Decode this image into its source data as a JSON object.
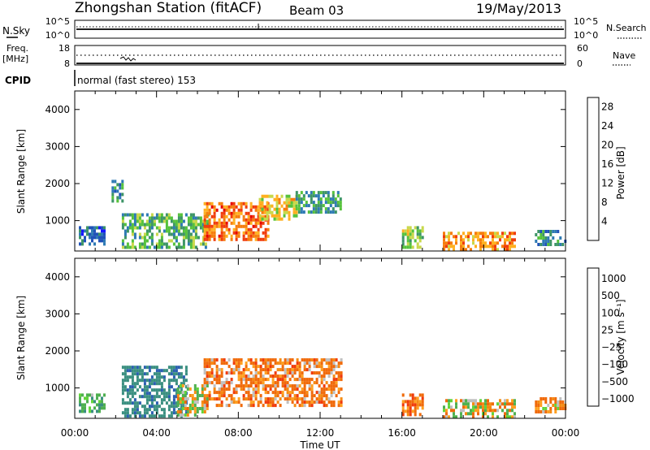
{
  "header": {
    "station": "Zhongshan Station (fitACF)",
    "beam": "Beam 03",
    "date": "19/May/2013"
  },
  "top_panels": {
    "nsky": {
      "label": "N.Sky",
      "left_ticks": [
        "10^5",
        "10^0"
      ],
      "right_ticks": [
        "10^5",
        "10^0"
      ],
      "right_label": "N.Search"
    },
    "freq": {
      "label_line1": "Freq.",
      "label_line2": "[MHz]",
      "left_ticks": [
        "18",
        "8"
      ],
      "right_ticks": [
        "60",
        "0"
      ],
      "right_label": "Nave"
    },
    "cpid": {
      "label": "CPID",
      "text": "normal (fast stereo) 153"
    }
  },
  "axes": {
    "ylabel": "Slant Range [km]",
    "yticks": [
      "1000",
      "2000",
      "3000",
      "4000"
    ],
    "xticks": [
      "00:00",
      "04:00",
      "08:00",
      "12:00",
      "16:00",
      "20:00",
      "00:00"
    ],
    "xlabel": "Time UT"
  },
  "colorbars": {
    "power": {
      "label": "Power [dB]",
      "ticks": [
        "4",
        "8",
        "12",
        "16",
        "20",
        "24",
        "28"
      ],
      "colors": [
        "#1515ff",
        "#2052b8",
        "#2e7ab4",
        "#3d9566",
        "#56c23c",
        "#c8d84a",
        "#ffb020",
        "#f67d0c",
        "#f03c0c",
        "#e60000"
      ]
    },
    "velocity": {
      "label": "Velocity [m s⁻¹]",
      "ticks": [
        "1000",
        "500",
        "100",
        "25",
        "−25",
        "−100",
        "−500",
        "−1000"
      ],
      "colors": [
        "#1c28c8",
        "#2a5fb0",
        "#3a8f80",
        "#4fb050",
        "#62d43a",
        "#bfbfbf",
        "#ffa020",
        "#f58a12",
        "#f06a0a",
        "#f03a0a",
        "#e60000"
      ]
    }
  },
  "chart_data": [
    {
      "type": "heatmap",
      "panel": "power",
      "x_range_hours": [
        0,
        24
      ],
      "y_range_km": [
        180,
        4500
      ],
      "value_unit": "dB",
      "regions": [
        {
          "t": [
            0.2,
            1.5
          ],
          "r": [
            350,
            850
          ],
          "value": 6
        },
        {
          "t": [
            1.8,
            2.3
          ],
          "r": [
            1500,
            2100
          ],
          "value": 8
        },
        {
          "t": [
            2.3,
            6.5
          ],
          "r": [
            250,
            1200
          ],
          "value": 12
        },
        {
          "t": [
            6.3,
            9.5
          ],
          "r": [
            500,
            1500
          ],
          "value": 24
        },
        {
          "t": [
            9.0,
            10.8
          ],
          "r": [
            1000,
            1700
          ],
          "value": 18
        },
        {
          "t": [
            10.8,
            13.0
          ],
          "r": [
            1200,
            1800
          ],
          "value": 10
        },
        {
          "t": [
            16.0,
            17.0
          ],
          "r": [
            250,
            850
          ],
          "value": 14
        },
        {
          "t": [
            18.0,
            21.5
          ],
          "r": [
            180,
            700
          ],
          "value": 22
        },
        {
          "t": [
            22.5,
            24.0
          ],
          "r": [
            350,
            750
          ],
          "value": 8
        }
      ]
    },
    {
      "type": "heatmap",
      "panel": "velocity",
      "x_range_hours": [
        0,
        24
      ],
      "y_range_km": [
        180,
        4500
      ],
      "value_unit": "m s-1",
      "regions": [
        {
          "t": [
            0.2,
            1.5
          ],
          "r": [
            350,
            850
          ],
          "value": 200
        },
        {
          "t": [
            2.3,
            5.5
          ],
          "r": [
            250,
            1600
          ],
          "value": 600
        },
        {
          "t": [
            5.0,
            6.5
          ],
          "r": [
            300,
            1100
          ],
          "value": 80
        },
        {
          "t": [
            6.3,
            13.0
          ],
          "r": [
            500,
            1800
          ],
          "value": -150
        },
        {
          "t": [
            16.0,
            17.0
          ],
          "r": [
            250,
            850
          ],
          "value": -200
        },
        {
          "t": [
            18.0,
            21.5
          ],
          "r": [
            180,
            700
          ],
          "value": 0
        },
        {
          "t": [
            22.5,
            24.0
          ],
          "r": [
            350,
            750
          ],
          "value": -100
        }
      ]
    }
  ]
}
